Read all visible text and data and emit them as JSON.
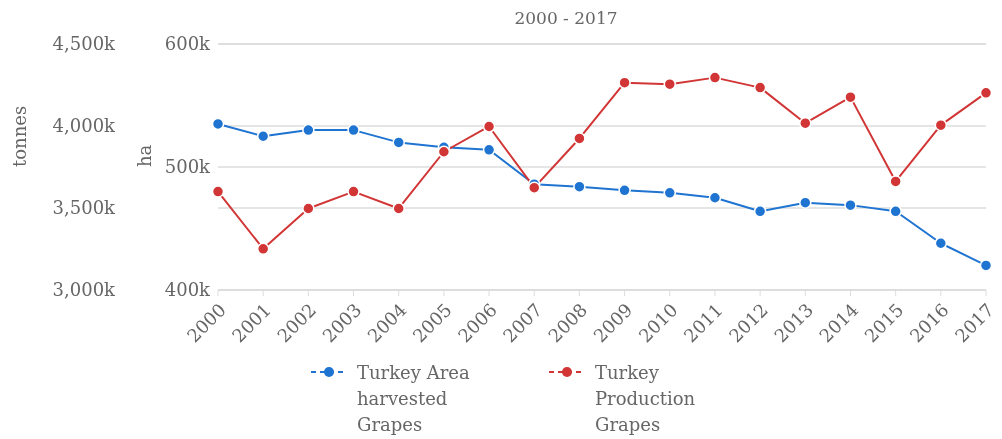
{
  "chart_data": {
    "type": "line",
    "title": "2000 - 2017",
    "ylabel": "ha",
    "y2label": "tonnes",
    "categories": [
      "2000",
      "2001",
      "2002",
      "2003",
      "2004",
      "2005",
      "2006",
      "2007",
      "2008",
      "2009",
      "2010",
      "2011",
      "2012",
      "2013",
      "2014",
      "2015",
      "2016",
      "2017"
    ],
    "series": [
      {
        "name": "Turkey Area harvested Grapes",
        "color": "#1f74d1",
        "values": [
          535,
          525,
          530,
          530,
          520,
          516,
          514,
          486,
          484,
          481,
          479,
          475,
          464,
          471,
          469,
          464,
          438,
          420
        ]
      },
      {
        "name": "Turkey Production Grapes",
        "color": "#d23535",
        "axis": "y2",
        "values": [
          3600,
          3251,
          3497,
          3600,
          3497,
          3843,
          3997,
          3624,
          3924,
          4264,
          4255,
          4295,
          4234,
          4017,
          4176,
          3662,
          4005,
          4202
        ]
      }
    ],
    "ylim": [
      400,
      600
    ],
    "yticks": [
      {
        "value": 400,
        "label": "400k"
      },
      {
        "value": 500,
        "label": "500k"
      },
      {
        "value": 600,
        "label": "600k"
      }
    ],
    "y2lim": [
      3000,
      4500
    ],
    "y2ticks": [
      {
        "value": 3000,
        "label": "3,000k"
      },
      {
        "value": 3500,
        "label": "3,500k"
      },
      {
        "value": 4000,
        "label": "4,000k"
      },
      {
        "value": 4500,
        "label": "4,500k"
      }
    ],
    "grid": "y",
    "legend": "bottom",
    "marker": "circle",
    "line_style": "solid"
  }
}
